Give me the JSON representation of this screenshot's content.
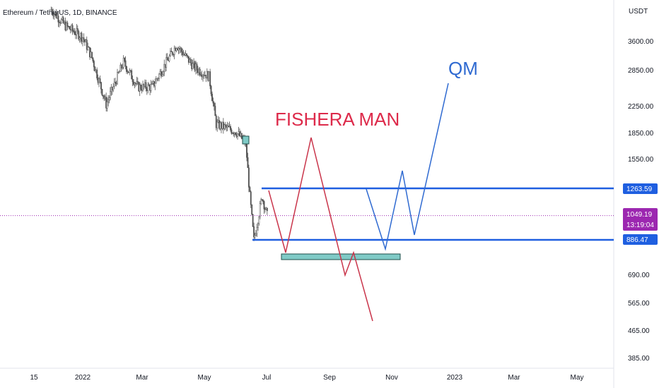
{
  "header": {
    "symbol": "Ethereum / TetherUS, 1D, BINANCE",
    "currency": "USDT"
  },
  "chart_data": {
    "type": "candlestick",
    "y_scale": "log",
    "y_ticks": [
      "3600.00",
      "2850.00",
      "2250.00",
      "1850.00",
      "1550.00",
      "690.00",
      "565.00",
      "465.00",
      "385.00"
    ],
    "x_ticks": [
      "15",
      "2022",
      "Mar",
      "May",
      "Jul",
      "Sep",
      "Nov",
      "2023",
      "Mar",
      "May"
    ],
    "price_tags": {
      "resistance": "1263.59",
      "last_price": "1049.19",
      "countdown": "13:19:04",
      "support": "886.47"
    },
    "levels": {
      "resistance": 1263.59,
      "support": 886.47,
      "last_price": 1049.19
    },
    "annotations": [
      "FISHERA MAN",
      "QM"
    ],
    "price_path": [
      {
        "date": "2021-12-01",
        "price": 4500
      },
      {
        "date": "2021-12-15",
        "price": 4000
      },
      {
        "date": "2022-01-01",
        "price": 3700
      },
      {
        "date": "2022-01-10",
        "price": 3200
      },
      {
        "date": "2022-01-24",
        "price": 2300
      },
      {
        "date": "2022-02-10",
        "price": 3100
      },
      {
        "date": "2022-02-24",
        "price": 2600
      },
      {
        "date": "2022-03-10",
        "price": 2600
      },
      {
        "date": "2022-04-03",
        "price": 3500
      },
      {
        "date": "2022-04-20",
        "price": 3000
      },
      {
        "date": "2022-05-05",
        "price": 2800
      },
      {
        "date": "2022-05-12",
        "price": 2000
      },
      {
        "date": "2022-05-31",
        "price": 1900
      },
      {
        "date": "2022-06-10",
        "price": 1750
      },
      {
        "date": "2022-06-14",
        "price": 1200
      },
      {
        "date": "2022-06-18",
        "price": 880
      },
      {
        "date": "2022-06-26",
        "price": 1200
      },
      {
        "date": "2022-07-01",
        "price": 1050
      }
    ],
    "colors": {
      "up": "#26a69a",
      "down": "#ef5350",
      "candles": "#555555",
      "level_line": "#1f5fe0",
      "fishera_path": "#c9344a",
      "qm_path": "#2f6ad1",
      "zone": "#7fcac6",
      "last_price_tag": "#9c27b0"
    }
  }
}
